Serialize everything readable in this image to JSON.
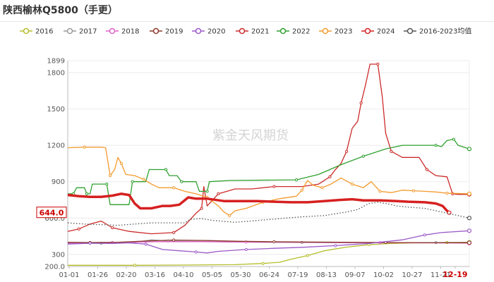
{
  "header": {
    "title": "陕西榆林Q5800（手更）"
  },
  "watermark": "紫金天风期货",
  "chart_data": {
    "type": "line",
    "title": "陕西榆林Q5800（手更）",
    "xlabel": "",
    "ylabel": "",
    "x_ticks": [
      "01-01",
      "01-26",
      "02-20",
      "03-16",
      "04-10",
      "05-05",
      "05-30",
      "06-24",
      "07-19",
      "08-13",
      "09-07",
      "10-02",
      "10-27",
      "11-21",
      "12-19"
    ],
    "y_ticks": [
      200,
      300,
      600,
      900,
      1200,
      1500,
      1800,
      1899
    ],
    "y_ticks_labeled": [
      "200.0",
      "300",
      "600.0",
      "900",
      "1200",
      "1500",
      "1800",
      "1899"
    ],
    "ylim": [
      200,
      1899
    ],
    "grid": true,
    "legend_position": "top",
    "last_value_label": "644.0",
    "highlight_x_label": "12-19",
    "series": [
      {
        "name": "2016",
        "color": "#b5bd2a",
        "style": "solid",
        "points": [
          [
            0,
            210
          ],
          [
            60,
            210
          ],
          [
            110,
            212
          ],
          [
            150,
            215
          ],
          [
            175,
            225
          ],
          [
            190,
            235
          ],
          [
            200,
            260
          ],
          [
            215,
            290
          ],
          [
            230,
            330
          ],
          [
            250,
            360
          ],
          [
            270,
            380
          ],
          [
            290,
            390
          ],
          [
            310,
            395
          ],
          [
            340,
            398
          ],
          [
            360,
            400
          ]
        ]
      },
      {
        "name": "2017",
        "color": "#999999",
        "style": "solid",
        "points": [
          [
            0,
            388
          ],
          [
            30,
            392
          ],
          [
            60,
            398
          ],
          [
            75,
            420
          ],
          [
            90,
            410
          ],
          [
            130,
            405
          ],
          [
            170,
            400
          ],
          [
            210,
            398
          ],
          [
            250,
            396
          ],
          [
            290,
            396
          ],
          [
            330,
            397
          ],
          [
            360,
            398
          ]
        ]
      },
      {
        "name": "2018",
        "color": "#e060c8",
        "style": "solid",
        "points": [
          [
            0,
            395
          ],
          [
            40,
            398
          ],
          [
            80,
            405
          ],
          [
            120,
            405
          ],
          [
            160,
            402
          ],
          [
            200,
            400
          ],
          [
            240,
            397
          ],
          [
            280,
            396
          ],
          [
            320,
            395
          ],
          [
            360,
            393
          ]
        ]
      },
      {
        "name": "2019",
        "color": "#8b3a2a",
        "style": "solid",
        "points": [
          [
            0,
            400
          ],
          [
            20,
            398
          ],
          [
            45,
            400
          ],
          [
            70,
            410
          ],
          [
            95,
            418
          ],
          [
            125,
            414
          ],
          [
            155,
            408
          ],
          [
            185,
            404
          ],
          [
            215,
            402
          ],
          [
            250,
            400
          ],
          [
            285,
            398
          ],
          [
            320,
            396
          ],
          [
            360,
            396
          ]
        ]
      },
      {
        "name": "2020",
        "color": "#9a58c8",
        "style": "solid",
        "points": [
          [
            0,
            385
          ],
          [
            20,
            392
          ],
          [
            40,
            390
          ],
          [
            55,
            395
          ],
          [
            70,
            385
          ],
          [
            85,
            340
          ],
          [
            100,
            330
          ],
          [
            115,
            320
          ],
          [
            125,
            312
          ],
          [
            135,
            325
          ],
          [
            160,
            340
          ],
          [
            185,
            350
          ],
          [
            210,
            358
          ],
          [
            240,
            372
          ],
          [
            270,
            390
          ],
          [
            300,
            420
          ],
          [
            320,
            460
          ],
          [
            335,
            480
          ],
          [
            360,
            495
          ]
        ]
      },
      {
        "name": "2021",
        "color": "#cc2a2a",
        "style": "solid",
        "points": [
          [
            0,
            490
          ],
          [
            10,
            510
          ],
          [
            20,
            550
          ],
          [
            30,
            575
          ],
          [
            40,
            520
          ],
          [
            55,
            490
          ],
          [
            75,
            470
          ],
          [
            95,
            480
          ],
          [
            105,
            540
          ],
          [
            115,
            640
          ],
          [
            120,
            680
          ],
          [
            122,
            860
          ],
          [
            125,
            700
          ],
          [
            135,
            800
          ],
          [
            150,
            840
          ],
          [
            165,
            840
          ],
          [
            185,
            860
          ],
          [
            210,
            860
          ],
          [
            225,
            880
          ],
          [
            235,
            940
          ],
          [
            240,
            1000
          ],
          [
            245,
            1050
          ],
          [
            250,
            1150
          ],
          [
            255,
            1340
          ],
          [
            260,
            1400
          ],
          [
            263,
            1550
          ],
          [
            267,
            1700
          ],
          [
            271,
            1870
          ],
          [
            278,
            1870
          ],
          [
            282,
            1600
          ],
          [
            285,
            1300
          ],
          [
            290,
            1150
          ],
          [
            300,
            1100
          ],
          [
            315,
            1100
          ],
          [
            322,
            1000
          ],
          [
            330,
            950
          ],
          [
            340,
            940
          ],
          [
            345,
            800
          ],
          [
            350,
            795
          ],
          [
            360,
            795
          ]
        ]
      },
      {
        "name": "2022",
        "color": "#2ea02e",
        "style": "solid",
        "points": [
          [
            0,
            800
          ],
          [
            5,
            800
          ],
          [
            8,
            850
          ],
          [
            15,
            850
          ],
          [
            17,
            800
          ],
          [
            20,
            800
          ],
          [
            22,
            880
          ],
          [
            35,
            880
          ],
          [
            38,
            710
          ],
          [
            55,
            710
          ],
          [
            58,
            900
          ],
          [
            70,
            900
          ],
          [
            73,
            1000
          ],
          [
            88,
            1000
          ],
          [
            91,
            950
          ],
          [
            98,
            950
          ],
          [
            102,
            900
          ],
          [
            115,
            900
          ],
          [
            118,
            820
          ],
          [
            125,
            820
          ],
          [
            127,
            900
          ],
          [
            145,
            910
          ],
          [
            205,
            915
          ],
          [
            225,
            960
          ],
          [
            245,
            1040
          ],
          [
            265,
            1110
          ],
          [
            285,
            1170
          ],
          [
            300,
            1200
          ],
          [
            330,
            1200
          ],
          [
            335,
            1190
          ],
          [
            340,
            1240
          ],
          [
            346,
            1250
          ],
          [
            350,
            1200
          ],
          [
            360,
            1170
          ]
        ]
      },
      {
        "name": "2023",
        "color": "#f39a2d",
        "style": "solid",
        "points": [
          [
            0,
            1180
          ],
          [
            15,
            1185
          ],
          [
            30,
            1185
          ],
          [
            34,
            1180
          ],
          [
            38,
            950
          ],
          [
            42,
            1000
          ],
          [
            45,
            1100
          ],
          [
            48,
            1050
          ],
          [
            52,
            960
          ],
          [
            60,
            950
          ],
          [
            68,
            920
          ],
          [
            75,
            880
          ],
          [
            82,
            850
          ],
          [
            95,
            850
          ],
          [
            105,
            820
          ],
          [
            115,
            800
          ],
          [
            125,
            770
          ],
          [
            135,
            700
          ],
          [
            140,
            650
          ],
          [
            145,
            620
          ],
          [
            150,
            660
          ],
          [
            160,
            680
          ],
          [
            175,
            730
          ],
          [
            190,
            760
          ],
          [
            205,
            780
          ],
          [
            210,
            830
          ],
          [
            215,
            910
          ],
          [
            220,
            870
          ],
          [
            228,
            850
          ],
          [
            236,
            880
          ],
          [
            245,
            930
          ],
          [
            255,
            880
          ],
          [
            265,
            850
          ],
          [
            272,
            900
          ],
          [
            280,
            820
          ],
          [
            290,
            810
          ],
          [
            300,
            830
          ],
          [
            310,
            825
          ],
          [
            320,
            820
          ],
          [
            330,
            815
          ],
          [
            340,
            805
          ],
          [
            360,
            800
          ]
        ]
      },
      {
        "name": "2024",
        "color": "#d62020",
        "style": "bold",
        "points": [
          [
            0,
            790
          ],
          [
            10,
            780
          ],
          [
            20,
            775
          ],
          [
            30,
            775
          ],
          [
            40,
            785
          ],
          [
            48,
            800
          ],
          [
            55,
            790
          ],
          [
            60,
            720
          ],
          [
            65,
            680
          ],
          [
            75,
            680
          ],
          [
            85,
            700
          ],
          [
            92,
            700
          ],
          [
            100,
            710
          ],
          [
            108,
            770
          ],
          [
            115,
            760
          ],
          [
            125,
            760
          ],
          [
            140,
            740
          ],
          [
            155,
            740
          ],
          [
            170,
            740
          ],
          [
            185,
            735
          ],
          [
            200,
            730
          ],
          [
            215,
            730
          ],
          [
            230,
            740
          ],
          [
            245,
            750
          ],
          [
            255,
            755
          ],
          [
            265,
            745
          ],
          [
            280,
            745
          ],
          [
            295,
            740
          ],
          [
            305,
            735
          ],
          [
            320,
            730
          ],
          [
            330,
            720
          ],
          [
            336,
            700
          ],
          [
            340,
            660
          ],
          [
            342,
            644
          ]
        ]
      },
      {
        "name": "2016-2023均值",
        "color": "#555555",
        "style": "dotted",
        "points": [
          [
            0,
            560
          ],
          [
            15,
            550
          ],
          [
            30,
            545
          ],
          [
            45,
            540
          ],
          [
            60,
            550
          ],
          [
            75,
            560
          ],
          [
            90,
            560
          ],
          [
            105,
            560
          ],
          [
            110,
            590
          ],
          [
            120,
            595
          ],
          [
            130,
            580
          ],
          [
            150,
            565
          ],
          [
            170,
            580
          ],
          [
            190,
            595
          ],
          [
            210,
            610
          ],
          [
            230,
            620
          ],
          [
            250,
            650
          ],
          [
            260,
            670
          ],
          [
            270,
            720
          ],
          [
            278,
            730
          ],
          [
            285,
            720
          ],
          [
            295,
            700
          ],
          [
            305,
            690
          ],
          [
            320,
            680
          ],
          [
            330,
            660
          ],
          [
            340,
            640
          ],
          [
            350,
            620
          ],
          [
            360,
            600
          ]
        ]
      }
    ]
  }
}
